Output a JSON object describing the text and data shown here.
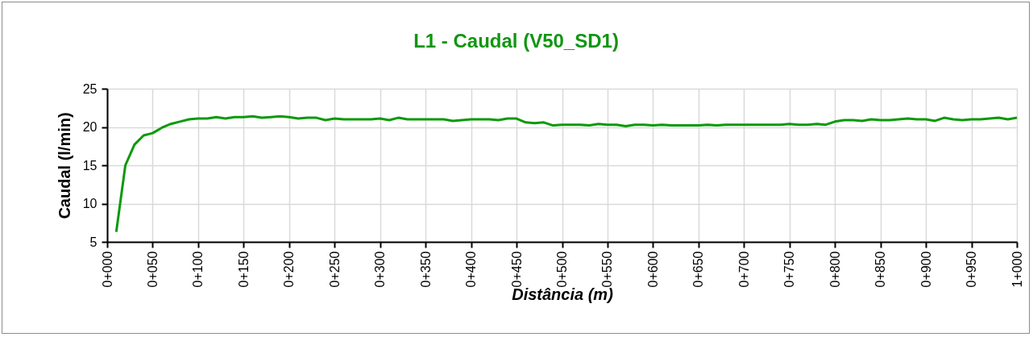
{
  "chart_data": {
    "type": "line",
    "title": "L1 - Caudal (V50_SD1)",
    "xlabel": "Distância (m)",
    "ylabel": "Caudal (l/min)",
    "categories": [
      "0+000",
      null,
      null,
      null,
      null,
      "0+050",
      null,
      null,
      null,
      null,
      "0+100",
      null,
      null,
      null,
      null,
      "0+150",
      null,
      null,
      null,
      null,
      "0+200",
      null,
      null,
      null,
      null,
      "0+250",
      null,
      null,
      null,
      null,
      "0+300",
      null,
      null,
      null,
      null,
      "0+350",
      null,
      null,
      null,
      null,
      "0+400",
      null,
      null,
      null,
      null,
      "0+450",
      null,
      null,
      null,
      null,
      "0+500",
      null,
      null,
      null,
      null,
      "0+550",
      null,
      null,
      null,
      null,
      "0+600",
      null,
      null,
      null,
      null,
      "0+650",
      null,
      null,
      null,
      null,
      "0+700",
      null,
      null,
      null,
      null,
      "0+750",
      null,
      null,
      null,
      null,
      "0+800",
      null,
      null,
      null,
      null,
      "0+850",
      null,
      null,
      null,
      null,
      "0+900",
      null,
      null,
      null,
      null,
      "0+950",
      null,
      null,
      null,
      null,
      "1+000"
    ],
    "series": [
      {
        "color": "#0a9a0a",
        "values": [
          null,
          6.3,
          15.0,
          17.7,
          18.9,
          19.2,
          19.9,
          20.4,
          20.7,
          21.0,
          21.1,
          21.1,
          21.3,
          21.1,
          21.3,
          21.3,
          21.4,
          21.2,
          21.3,
          21.4,
          21.3,
          21.1,
          21.2,
          21.2,
          20.9,
          21.1,
          21.0,
          21.0,
          21.0,
          21.0,
          21.1,
          20.9,
          21.2,
          21.0,
          21.0,
          21.0,
          21.0,
          21.0,
          20.8,
          20.9,
          21.0,
          21.0,
          21.0,
          20.9,
          21.1,
          21.1,
          20.6,
          20.5,
          20.6,
          20.2,
          20.3,
          20.3,
          20.3,
          20.2,
          20.4,
          20.3,
          20.3,
          20.1,
          20.3,
          20.3,
          20.2,
          20.3,
          20.2,
          20.2,
          20.2,
          20.2,
          20.3,
          20.2,
          20.3,
          20.3,
          20.3,
          20.3,
          20.3,
          20.3,
          20.3,
          20.4,
          20.3,
          20.3,
          20.4,
          20.3,
          20.7,
          20.9,
          20.9,
          20.8,
          21.0,
          20.9,
          20.9,
          21.0,
          21.1,
          21.0,
          21.0,
          20.8,
          21.2,
          21.0,
          20.9,
          21.0,
          21.0,
          21.1,
          21.2,
          21.0,
          21.2
        ]
      }
    ],
    "ylim": [
      5,
      25
    ],
    "yticks": [
      5,
      10,
      15,
      20,
      25
    ],
    "grid": true
  }
}
